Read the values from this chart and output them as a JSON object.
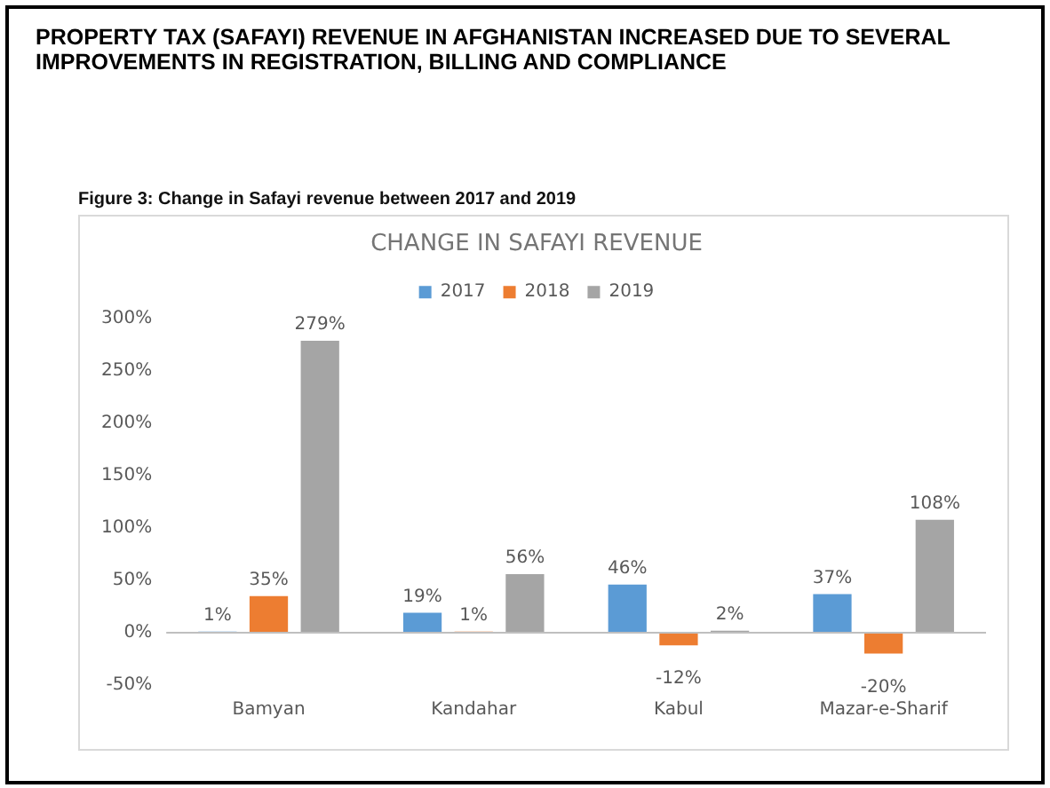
{
  "chart_data": {
    "type": "bar",
    "title": "PROPERTY TAX (SAFAYI) REVENUE IN AFGHANISTAN INCREASED DUE TO SEVERAL IMPROVEMENTS IN REGISTRATION, BILLING AND COMPLIANCE",
    "subtitle": "CHANGE IN SAFAYI REVENUE",
    "annotations": [
      "Figure 3: Change in Safayi revenue between 2017 and 2019"
    ],
    "categories": [
      "Bamyan",
      "Kandahar",
      "Kabul",
      "Mazar-e-Sharif"
    ],
    "series": [
      {
        "name": "2017",
        "color": "#5b9bd5",
        "values": [
          1,
          19,
          46,
          37
        ],
        "value_labels": [
          "1%",
          "19%",
          "46%",
          "37%"
        ]
      },
      {
        "name": "2018",
        "color": "#ed7d31",
        "values": [
          35,
          1,
          -12,
          -20
        ],
        "value_labels": [
          "35%",
          "1%",
          "-12%",
          "-20%"
        ]
      },
      {
        "name": "2019",
        "color": "#a5a5a5",
        "values": [
          279,
          56,
          2,
          108
        ],
        "value_labels": [
          "279%",
          "56%",
          "2%",
          "108%"
        ]
      }
    ],
    "ylim": [
      -50,
      300
    ],
    "yticks": [
      {
        "value": -50,
        "label": "-50%"
      },
      {
        "value": 0,
        "label": "0%"
      },
      {
        "value": 50,
        "label": "50%"
      },
      {
        "value": 100,
        "label": "100%"
      },
      {
        "value": 150,
        "label": "150%"
      },
      {
        "value": 200,
        "label": "200%"
      },
      {
        "value": 250,
        "label": "250%"
      },
      {
        "value": 300,
        "label": "300%"
      }
    ],
    "ref_lines": [
      {
        "axis": "y",
        "value": 0,
        "color": "#bfbfbf"
      }
    ],
    "grid": false,
    "legend": "top"
  }
}
